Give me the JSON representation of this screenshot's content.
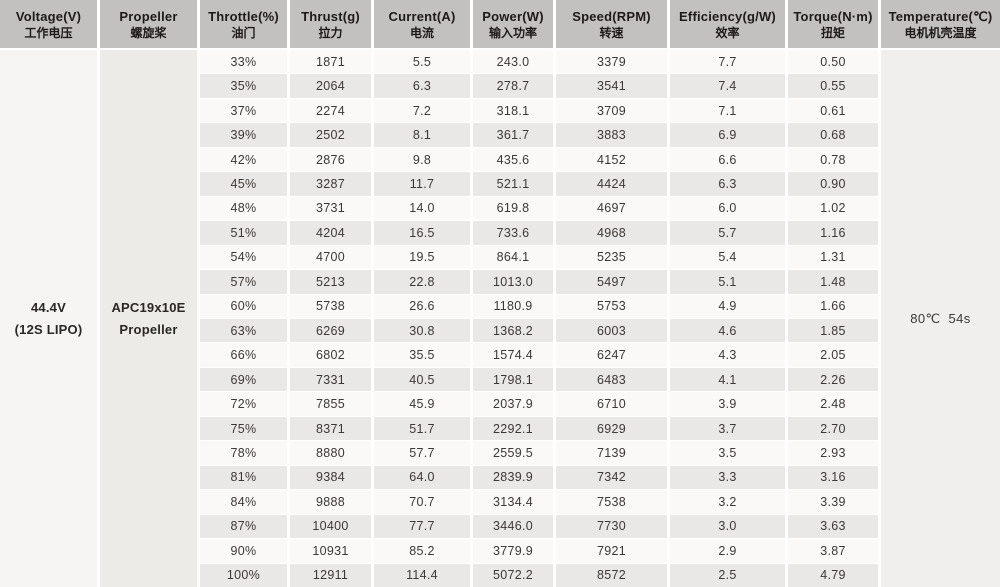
{
  "accent_colors": {
    "header_bg": "#c3c1c0",
    "row_odd_bg": "#faf9f8",
    "row_even_bg": "#eae8e6",
    "voltage_col_bg": "#f6f5f3",
    "propeller_col_bg": "#edebe8",
    "temperature_col_bg": "#f0efed",
    "text": "#3c3836"
  },
  "table": {
    "columns": [
      {
        "key": "voltage",
        "en": "Voltage(V)",
        "cn": "工作电压"
      },
      {
        "key": "propeller",
        "en": "Propeller",
        "cn": "螺旋桨"
      },
      {
        "key": "throttle",
        "en": "Throttle(%)",
        "cn": "油门"
      },
      {
        "key": "thrust",
        "en": "Thrust(g)",
        "cn": "拉力"
      },
      {
        "key": "current",
        "en": "Current(A)",
        "cn": "电流"
      },
      {
        "key": "power",
        "en": "Power(W)",
        "cn": "输入功率"
      },
      {
        "key": "speed",
        "en": "Speed(RPM)",
        "cn": "转速"
      },
      {
        "key": "efficiency",
        "en": "Efficiency(g/W)",
        "cn": "效率"
      },
      {
        "key": "torque",
        "en": "Torque(N·m)",
        "cn": "扭矩"
      },
      {
        "key": "temperature",
        "en": "Temperature(℃)",
        "cn": "电机机壳温度"
      }
    ],
    "merged": {
      "voltage": [
        "44.4V",
        "(12S LIPO)"
      ],
      "propeller": [
        "APC19x10E",
        "Propeller"
      ],
      "temperature": [
        "80℃  54s"
      ]
    },
    "rows": [
      {
        "throttle": "33%",
        "thrust": "1871",
        "current": "5.5",
        "power": "243.0",
        "speed": "3379",
        "efficiency": "7.7",
        "torque": "0.50"
      },
      {
        "throttle": "35%",
        "thrust": "2064",
        "current": "6.3",
        "power": "278.7",
        "speed": "3541",
        "efficiency": "7.4",
        "torque": "0.55"
      },
      {
        "throttle": "37%",
        "thrust": "2274",
        "current": "7.2",
        "power": "318.1",
        "speed": "3709",
        "efficiency": "7.1",
        "torque": "0.61"
      },
      {
        "throttle": "39%",
        "thrust": "2502",
        "current": "8.1",
        "power": "361.7",
        "speed": "3883",
        "efficiency": "6.9",
        "torque": "0.68"
      },
      {
        "throttle": "42%",
        "thrust": "2876",
        "current": "9.8",
        "power": "435.6",
        "speed": "4152",
        "efficiency": "6.6",
        "torque": "0.78"
      },
      {
        "throttle": "45%",
        "thrust": "3287",
        "current": "11.7",
        "power": "521.1",
        "speed": "4424",
        "efficiency": "6.3",
        "torque": "0.90"
      },
      {
        "throttle": "48%",
        "thrust": "3731",
        "current": "14.0",
        "power": "619.8",
        "speed": "4697",
        "efficiency": "6.0",
        "torque": "1.02"
      },
      {
        "throttle": "51%",
        "thrust": "4204",
        "current": "16.5",
        "power": "733.6",
        "speed": "4968",
        "efficiency": "5.7",
        "torque": "1.16"
      },
      {
        "throttle": "54%",
        "thrust": "4700",
        "current": "19.5",
        "power": "864.1",
        "speed": "5235",
        "efficiency": "5.4",
        "torque": "1.31"
      },
      {
        "throttle": "57%",
        "thrust": "5213",
        "current": "22.8",
        "power": "1013.0",
        "speed": "5497",
        "efficiency": "5.1",
        "torque": "1.48"
      },
      {
        "throttle": "60%",
        "thrust": "5738",
        "current": "26.6",
        "power": "1180.9",
        "speed": "5753",
        "efficiency": "4.9",
        "torque": "1.66"
      },
      {
        "throttle": "63%",
        "thrust": "6269",
        "current": "30.8",
        "power": "1368.2",
        "speed": "6003",
        "efficiency": "4.6",
        "torque": "1.85"
      },
      {
        "throttle": "66%",
        "thrust": "6802",
        "current": "35.5",
        "power": "1574.4",
        "speed": "6247",
        "efficiency": "4.3",
        "torque": "2.05"
      },
      {
        "throttle": "69%",
        "thrust": "7331",
        "current": "40.5",
        "power": "1798.1",
        "speed": "6483",
        "efficiency": "4.1",
        "torque": "2.26"
      },
      {
        "throttle": "72%",
        "thrust": "7855",
        "current": "45.9",
        "power": "2037.9",
        "speed": "6710",
        "efficiency": "3.9",
        "torque": "2.48"
      },
      {
        "throttle": "75%",
        "thrust": "8371",
        "current": "51.7",
        "power": "2292.1",
        "speed": "6929",
        "efficiency": "3.7",
        "torque": "2.70"
      },
      {
        "throttle": "78%",
        "thrust": "8880",
        "current": "57.7",
        "power": "2559.5",
        "speed": "7139",
        "efficiency": "3.5",
        "torque": "2.93"
      },
      {
        "throttle": "81%",
        "thrust": "9384",
        "current": "64.0",
        "power": "2839.9",
        "speed": "7342",
        "efficiency": "3.3",
        "torque": "3.16"
      },
      {
        "throttle": "84%",
        "thrust": "9888",
        "current": "70.7",
        "power": "3134.4",
        "speed": "7538",
        "efficiency": "3.2",
        "torque": "3.39"
      },
      {
        "throttle": "87%",
        "thrust": "10400",
        "current": "77.7",
        "power": "3446.0",
        "speed": "7730",
        "efficiency": "3.0",
        "torque": "3.63"
      },
      {
        "throttle": "90%",
        "thrust": "10931",
        "current": "85.2",
        "power": "3779.9",
        "speed": "7921",
        "efficiency": "2.9",
        "torque": "3.87"
      },
      {
        "throttle": "100%",
        "thrust": "12911",
        "current": "114.4",
        "power": "5072.2",
        "speed": "8572",
        "efficiency": "2.5",
        "torque": "4.79"
      }
    ]
  },
  "chart_data": {
    "type": "table",
    "title": "Motor test data — 44.4V (12S LIPO), APC19x10E Propeller",
    "categories": [
      "33%",
      "35%",
      "37%",
      "39%",
      "42%",
      "45%",
      "48%",
      "51%",
      "54%",
      "57%",
      "60%",
      "63%",
      "66%",
      "69%",
      "72%",
      "75%",
      "78%",
      "81%",
      "84%",
      "87%",
      "90%",
      "100%"
    ],
    "series": [
      {
        "name": "Thrust(g)",
        "values": [
          1871,
          2064,
          2274,
          2502,
          2876,
          3287,
          3731,
          4204,
          4700,
          5213,
          5738,
          6269,
          6802,
          7331,
          7855,
          8371,
          8880,
          9384,
          9888,
          10400,
          10931,
          12911
        ]
      },
      {
        "name": "Current(A)",
        "values": [
          5.5,
          6.3,
          7.2,
          8.1,
          9.8,
          11.7,
          14.0,
          16.5,
          19.5,
          22.8,
          26.6,
          30.8,
          35.5,
          40.5,
          45.9,
          51.7,
          57.7,
          64.0,
          70.7,
          77.7,
          85.2,
          114.4
        ]
      },
      {
        "name": "Power(W)",
        "values": [
          243.0,
          278.7,
          318.1,
          361.7,
          435.6,
          521.1,
          619.8,
          733.6,
          864.1,
          1013.0,
          1180.9,
          1368.2,
          1574.4,
          1798.1,
          2037.9,
          2292.1,
          2559.5,
          2839.9,
          3134.4,
          3446.0,
          3779.9,
          5072.2
        ]
      },
      {
        "name": "Speed(RPM)",
        "values": [
          3379,
          3541,
          3709,
          3883,
          4152,
          4424,
          4697,
          4968,
          5235,
          5497,
          5753,
          6003,
          6247,
          6483,
          6710,
          6929,
          7139,
          7342,
          7538,
          7730,
          7921,
          8572
        ]
      },
      {
        "name": "Efficiency(g/W)",
        "values": [
          7.7,
          7.4,
          7.1,
          6.9,
          6.6,
          6.3,
          6.0,
          5.7,
          5.4,
          5.1,
          4.9,
          4.6,
          4.3,
          4.1,
          3.9,
          3.7,
          3.5,
          3.3,
          3.2,
          3.0,
          2.9,
          2.5
        ]
      },
      {
        "name": "Torque(N·m)",
        "values": [
          0.5,
          0.55,
          0.61,
          0.68,
          0.78,
          0.9,
          1.02,
          1.16,
          1.31,
          1.48,
          1.66,
          1.85,
          2.05,
          2.26,
          2.48,
          2.7,
          2.93,
          3.16,
          3.39,
          3.63,
          3.87,
          4.79
        ]
      }
    ],
    "constants": {
      "voltage": "44.4V (12S LIPO)",
      "propeller": "APC19x10E Propeller",
      "temperature": "80℃ 54s"
    }
  }
}
